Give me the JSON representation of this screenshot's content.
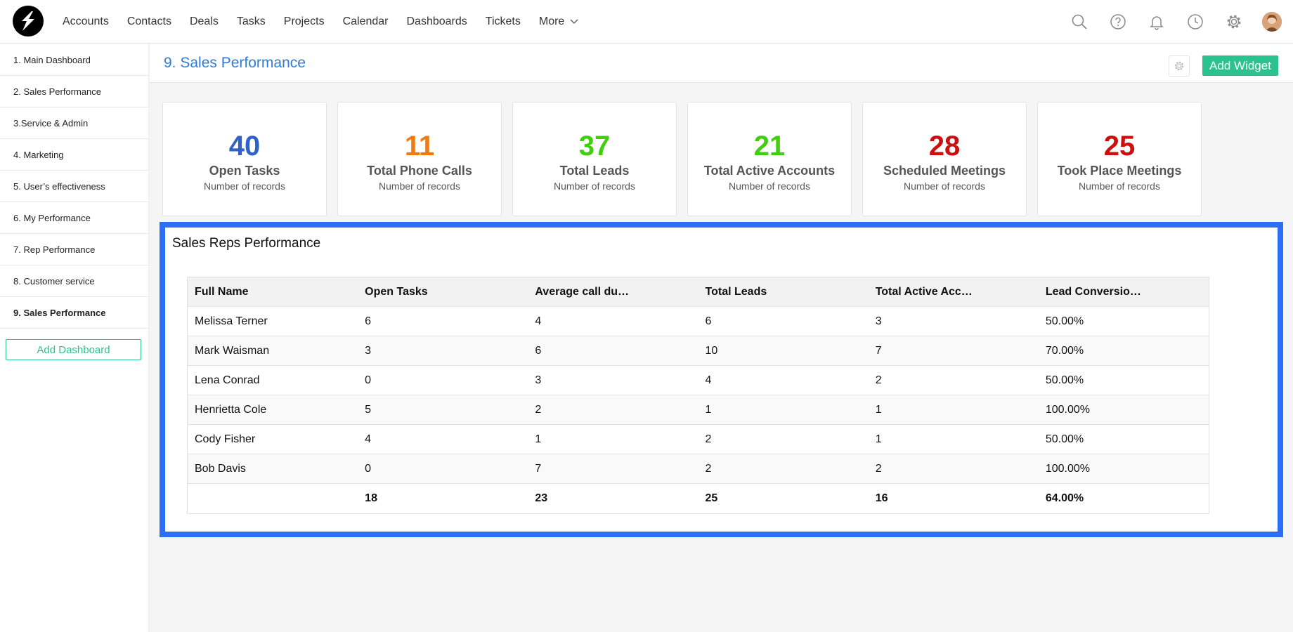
{
  "nav": {
    "items": [
      "Accounts",
      "Contacts",
      "Deals",
      "Tasks",
      "Projects",
      "Calendar",
      "Dashboards",
      "Tickets"
    ],
    "more_label": "More"
  },
  "top_icons": [
    "search-icon",
    "help-icon",
    "bell-icon",
    "clock-icon",
    "gear-icon"
  ],
  "sidebar": {
    "items": [
      "1. Main Dashboard",
      "2. Sales Performance",
      "3.Service & Admin",
      "4. Marketing",
      "5. User’s effectiveness",
      "6. My Performance",
      "7. Rep Performance",
      "8. Customer service",
      "9. Sales Performance"
    ],
    "active_index": 8,
    "add_dashboard_label": "Add Dashboard"
  },
  "header": {
    "title": "9. Sales Performance",
    "add_widget_label": "Add Widget"
  },
  "cards": [
    {
      "value": "40",
      "title": "Open Tasks",
      "subtitle": "Number of records",
      "color": "#2f62c8"
    },
    {
      "value": "11",
      "title": "Total Phone Calls",
      "subtitle": "Number of records",
      "color": "#f07a10"
    },
    {
      "value": "37",
      "title": "Total Leads",
      "subtitle": "Number of records",
      "color": "#3fcf0e"
    },
    {
      "value": "21",
      "title": "Total Active Accounts",
      "subtitle": "Number of records",
      "color": "#3fcf0e"
    },
    {
      "value": "28",
      "title": "Scheduled Meetings",
      "subtitle": "Number of records",
      "color": "#cc0f0f"
    },
    {
      "value": "25",
      "title": "Took Place Meetings",
      "subtitle": "Number of records",
      "color": "#cc0f0f"
    }
  ],
  "widget": {
    "title": "Sales Reps Performance",
    "columns": [
      "Full Name",
      "Open Tasks",
      "Average call du…",
      "Total Leads",
      "Total Active Acc…",
      "Lead Conversio…"
    ],
    "rows": [
      [
        "Melissa Terner",
        "6",
        "4",
        "6",
        "3",
        "50.00%"
      ],
      [
        "Mark Waisman",
        "3",
        "6",
        "10",
        "7",
        "70.00%"
      ],
      [
        "Lena Conrad",
        "0",
        "3",
        "4",
        "2",
        "50.00%"
      ],
      [
        "Henrietta Cole",
        "5",
        "2",
        "1",
        "1",
        "100.00%"
      ],
      [
        "Cody Fisher",
        "4",
        "1",
        "2",
        "1",
        "50.00%"
      ],
      [
        "Bob Davis",
        "0",
        "7",
        "2",
        "2",
        "100.00%"
      ]
    ],
    "totals": [
      "",
      "18",
      "23",
      "25",
      "16",
      "64.00%"
    ]
  }
}
